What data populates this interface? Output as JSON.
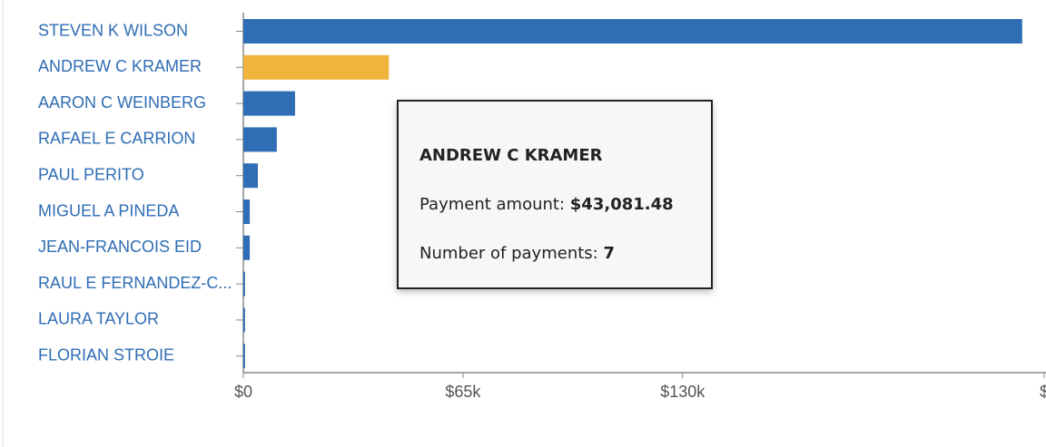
{
  "chart_data": {
    "type": "hbar",
    "categories": [
      "STEVEN K WILSON",
      "ANDREW C KRAMER",
      "AARON C WEINBERG",
      "RAFAEL E CARRION",
      "PAUL PERITO",
      "MIGUEL A PINEDA",
      "JEAN-FRANCOIS EID",
      "RAUL E FERNANDEZ-C...",
      "LAURA TAYLOR",
      "FLORIAN STROIE"
    ],
    "values": [
      230500,
      43081.48,
      15300,
      9900,
      4300,
      1900,
      1900,
      500,
      500,
      500
    ],
    "colors": [
      "#2f6db5",
      "#f0b43c",
      "#2f6db5",
      "#2f6db5",
      "#2f6db5",
      "#2f6db5",
      "#2f6db5",
      "#2f6db5",
      "#2f6db5",
      "#2f6db5"
    ],
    "xlim": [
      0,
      237000
    ],
    "xticks": [
      {
        "value": 0,
        "label": "$0"
      },
      {
        "value": 65000,
        "label": "$65k"
      },
      {
        "value": 130000,
        "label": "$130k"
      },
      {
        "value": 237000,
        "label": "$"
      }
    ],
    "tooltip": {
      "title": "ANDREW C KRAMER",
      "amount_label": "Payment amount:",
      "amount": "$43,081.48",
      "count_label": "Number of payments:",
      "count": 7
    }
  }
}
